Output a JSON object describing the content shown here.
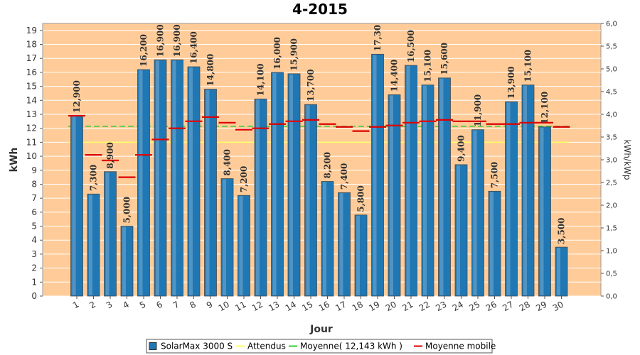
{
  "chart_data": {
    "type": "bar",
    "title": "4-2015",
    "xlabel": "Jour",
    "ylabel": "kWh",
    "y2label": "kWh/kWp",
    "ylim": [
      0,
      19.5
    ],
    "y2lim": [
      0,
      6.0
    ],
    "y2ticks": [
      "0,0",
      "0,5",
      "1,0",
      "1,5",
      "2,0",
      "2,5",
      "3,0",
      "3,5",
      "4,0",
      "4,5",
      "5,0",
      "5,5",
      "6,0"
    ],
    "categories": [
      "1",
      "2",
      "3",
      "4",
      "5",
      "6",
      "7",
      "8",
      "9",
      "10",
      "11",
      "12",
      "13",
      "14",
      "15",
      "16",
      "17",
      "18",
      "19",
      "20",
      "21",
      "22",
      "23",
      "24",
      "25",
      "26",
      "27",
      "28",
      "29",
      "30"
    ],
    "series": [
      {
        "name": "SolarMax 3000 S",
        "values": [
          12.9,
          7.3,
          8.9,
          5.0,
          16.2,
          16.9,
          16.9,
          16.4,
          14.8,
          8.4,
          7.2,
          14.1,
          16.0,
          15.9,
          13.7,
          8.2,
          7.4,
          5.8,
          17.3,
          14.4,
          16.5,
          15.1,
          15.6,
          9.4,
          11.9,
          7.5,
          13.9,
          15.1,
          12.1,
          3.5
        ],
        "labels": [
          "12,900",
          "7,300",
          "8,900",
          "5,000",
          "16,200",
          "16,900",
          "16,900",
          "16,400",
          "14,800",
          "8,400",
          "7,200",
          "14,100",
          "16,000",
          "15,900",
          "13,700",
          "8,200",
          "7,400",
          "5,800",
          "17,30",
          "14,400",
          "16,500",
          "15,100",
          "15,600",
          "9,400",
          "11,900",
          "7,500",
          "13,900",
          "15,100",
          "12,100",
          "3,500"
        ],
        "color": "#1f77b4"
      },
      {
        "name": "Attendus",
        "value": 11.0,
        "color": "#ffff66"
      },
      {
        "name": "Moyenne( 12,143 kWh )",
        "value": 12.143,
        "color": "#33cc33"
      },
      {
        "name": "Moyenne mobile",
        "values": [
          12.9,
          10.1,
          9.7,
          8.5,
          10.1,
          11.2,
          12.0,
          12.5,
          12.8,
          12.4,
          11.9,
          12.0,
          12.3,
          12.5,
          12.6,
          12.3,
          12.1,
          11.8,
          12.1,
          12.2,
          12.4,
          12.5,
          12.6,
          12.5,
          12.5,
          12.3,
          12.3,
          12.4,
          12.4,
          12.1
        ],
        "color": "#dd0000"
      }
    ],
    "plot_background": "#ffcc99",
    "grid": true,
    "legend": "bottom"
  }
}
